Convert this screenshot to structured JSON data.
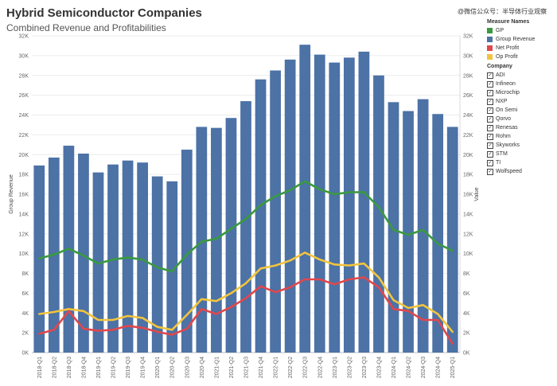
{
  "header": {
    "title": "Hybrid Semiconductor Companies",
    "subtitle": "Combined Revenue and Profitabilities",
    "watermark": "@微信公众号：半导体行业观察"
  },
  "legend": {
    "measure_title": "Measure Names",
    "measures": [
      {
        "label": "GP",
        "color": "#3a9a3e"
      },
      {
        "label": "Group Revenue",
        "color": "#4c72a6"
      },
      {
        "label": "Net Profit",
        "color": "#e0474c"
      },
      {
        "label": "Op Profit",
        "color": "#f2c43d"
      }
    ],
    "company_title": "Company",
    "companies": [
      "ADI",
      "Infineon",
      "Microchip",
      "NXP",
      "On Semi",
      "Qorvo",
      "Renesas",
      "Rohm",
      "Skyworks",
      "STM",
      "TI",
      "Wolfspeed"
    ]
  },
  "chart_data": {
    "type": "bar",
    "title": "Hybrid Semiconductor Companies",
    "subtitle": "Combined Revenue and Profitabilities",
    "ylabel": "Group Revenue",
    "y2label": "Value",
    "ylim": [
      0,
      32000
    ],
    "y_ticks": [
      "0K",
      "2K",
      "4K",
      "6K",
      "8K",
      "10K",
      "12K",
      "14K",
      "16K",
      "18K",
      "20K",
      "22K",
      "24K",
      "26K",
      "28K",
      "30K",
      "32K"
    ],
    "categories": [
      "2018-Q1",
      "2018-Q2",
      "2018-Q3",
      "2018-Q4",
      "2019-Q1",
      "2019-Q2",
      "2019-Q3",
      "2019-Q4",
      "2020-Q1",
      "2020-Q2",
      "2020-Q3",
      "2020-Q4",
      "2021-Q1",
      "2021-Q2",
      "2021-Q3",
      "2021-Q4",
      "2022-Q1",
      "2022-Q2",
      "2022-Q3",
      "2022-Q4",
      "2023-Q1",
      "2023-Q2",
      "2023-Q3",
      "2023-Q4",
      "2024-Q1",
      "2024-Q2",
      "2024-Q3",
      "2024-Q4",
      "2025-Q1"
    ],
    "series": [
      {
        "name": "Group Revenue",
        "kind": "bar",
        "color": "#4c72a6",
        "values": [
          18900,
          19700,
          20900,
          20100,
          18200,
          19000,
          19400,
          19200,
          17800,
          17300,
          20500,
          22800,
          22700,
          23700,
          25400,
          27600,
          28500,
          29600,
          31100,
          30100,
          29300,
          29800,
          30400,
          28000,
          25300,
          24400,
          25600,
          24100,
          22800
        ]
      },
      {
        "name": "GP",
        "kind": "line",
        "color": "#3a9a3e",
        "values": [
          9500,
          9900,
          10500,
          9800,
          9000,
          9400,
          9600,
          9400,
          8600,
          8200,
          9900,
          11200,
          11500,
          12500,
          13500,
          14900,
          15800,
          16400,
          17300,
          16500,
          16000,
          16200,
          16200,
          14700,
          12400,
          11900,
          12400,
          11000,
          10300
        ]
      },
      {
        "name": "Op Profit",
        "kind": "line",
        "color": "#f2c43d",
        "values": [
          3900,
          4100,
          4400,
          4200,
          3300,
          3300,
          3700,
          3500,
          2600,
          2300,
          3800,
          5400,
          5200,
          6000,
          7000,
          8500,
          8800,
          9300,
          10100,
          9400,
          8900,
          8800,
          9000,
          7600,
          5300,
          4500,
          4800,
          3900,
          2100
        ]
      },
      {
        "name": "Net Profit",
        "kind": "line",
        "color": "#e0474c",
        "values": [
          1900,
          2300,
          4200,
          2400,
          2200,
          2300,
          2700,
          2500,
          2100,
          1800,
          2400,
          4400,
          3900,
          4600,
          5500,
          6700,
          6100,
          6600,
          7400,
          7400,
          6900,
          7400,
          7600,
          6600,
          4400,
          4200,
          3300,
          3300,
          900
        ]
      }
    ]
  }
}
